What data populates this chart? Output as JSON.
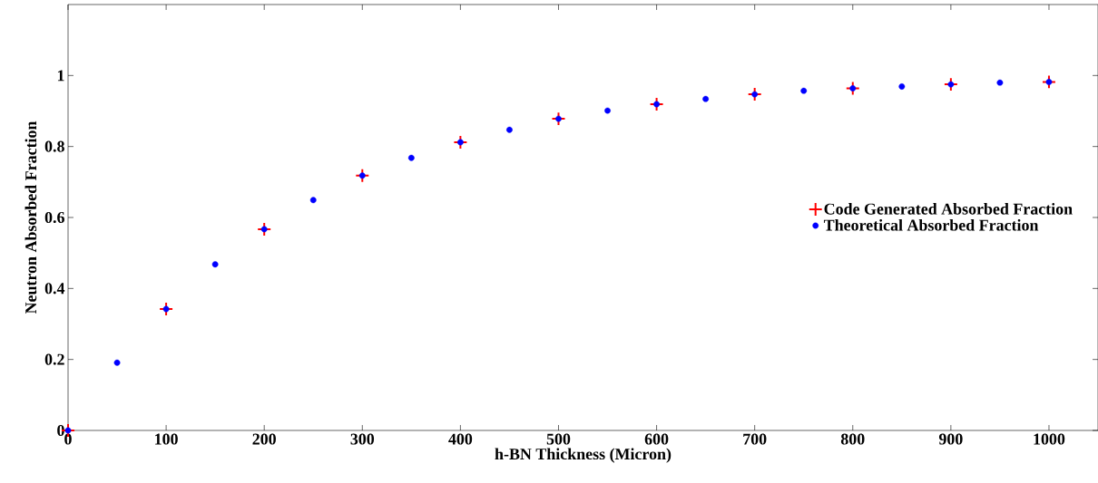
{
  "chart_data": {
    "type": "scatter",
    "xlabel": "h-BN Thickness (Micron)",
    "ylabel": "Neutron Absorbed Fraction",
    "xlim": [
      0,
      1050
    ],
    "ylim": [
      0,
      1.2
    ],
    "xticks": [
      0,
      100,
      200,
      300,
      400,
      500,
      600,
      700,
      800,
      900,
      1000
    ],
    "yticks": [
      0,
      0.2,
      0.4,
      0.6,
      0.8,
      1
    ],
    "legend": "right",
    "series": [
      {
        "name": "Code Generated Absorbed Fraction",
        "color": "#ff0000",
        "marker": "cross",
        "x": [
          0,
          100,
          200,
          300,
          400,
          500,
          600,
          700,
          800,
          900,
          1000
        ],
        "values": [
          0,
          0.342,
          0.567,
          0.718,
          0.812,
          0.878,
          0.919,
          0.947,
          0.964,
          0.975,
          0.982
        ]
      },
      {
        "name": "Theoretical Absorbed Fraction",
        "color": "#0000ff",
        "marker": "circle",
        "x": [
          0,
          50,
          100,
          150,
          200,
          250,
          300,
          350,
          400,
          450,
          500,
          550,
          600,
          650,
          700,
          750,
          800,
          850,
          900,
          950,
          1000
        ],
        "values": [
          0,
          0.191,
          0.342,
          0.468,
          0.567,
          0.649,
          0.718,
          0.768,
          0.812,
          0.847,
          0.878,
          0.901,
          0.919,
          0.934,
          0.947,
          0.957,
          0.964,
          0.969,
          0.975,
          0.98,
          0.982
        ]
      }
    ]
  }
}
